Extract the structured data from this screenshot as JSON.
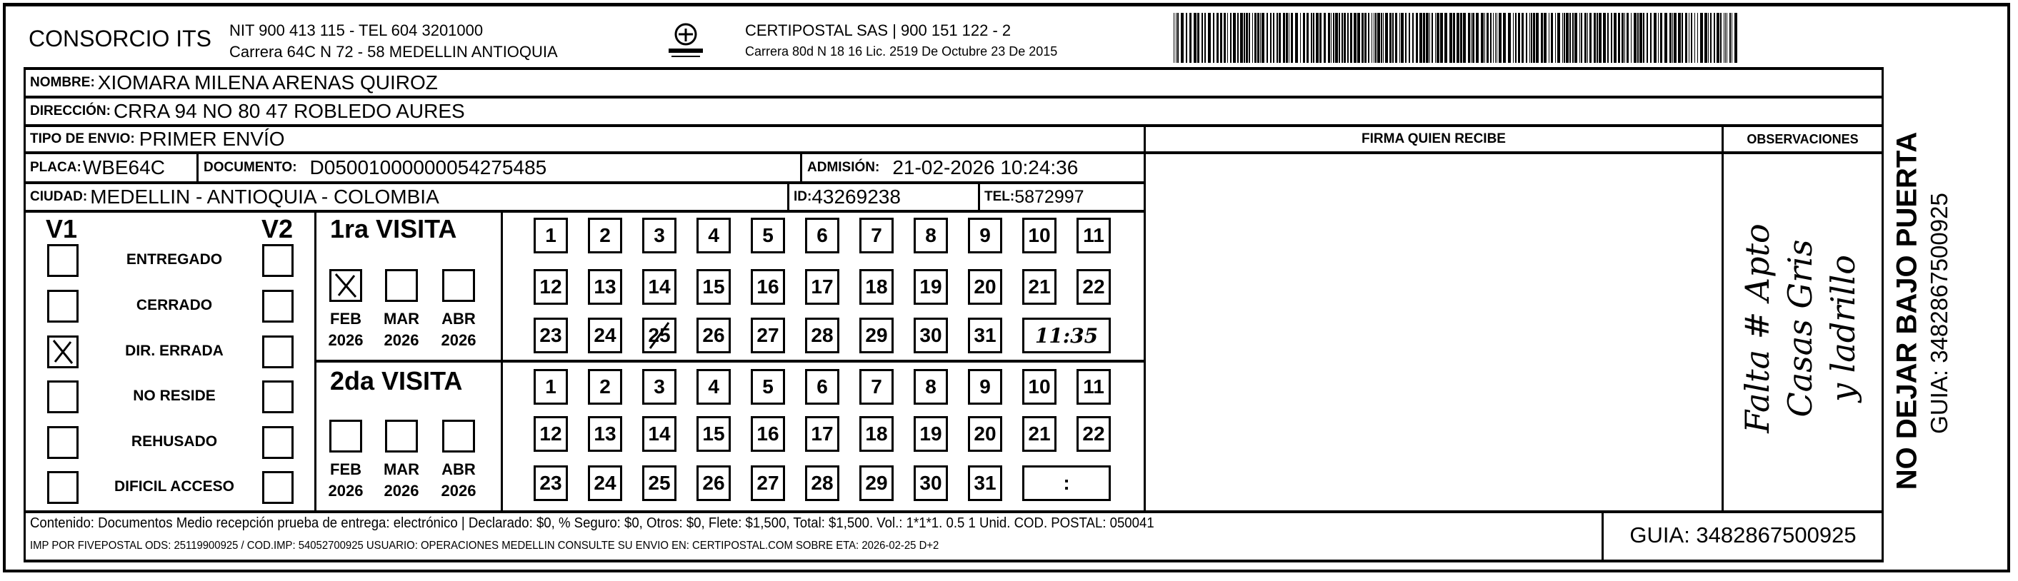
{
  "header": {
    "company": "CONSORCIO ITS",
    "company_line1": "NIT 900 413 115 - TEL 604 3201000",
    "company_line2": "Carrera 64C N 72 - 58 MEDELLIN ANTIOQUIA",
    "logo_text": "CERTIPOSTAL",
    "carrier_line1": "CERTIPOSTAL SAS | 900 151 122 - 2",
    "carrier_line2": "Carrera 80d N 18 16  Lic. 2519 De Octubre 23 De 2015",
    "barcode_icon": "barcode"
  },
  "fields": {
    "nombre_label": "NOMBRE:",
    "nombre": "XIOMARA MILENA ARENAS QUIROZ",
    "direccion_label": "DIRECCIÓN:",
    "direccion": "CRRA 94 NO 80 47 ROBLEDO AURES",
    "tipo_label": "TIPO DE ENVIO:",
    "tipo": "PRIMER ENVÍO",
    "placa_label": "PLACA:",
    "placa": "WBE64C",
    "documento_label": "DOCUMENTO:",
    "documento": "D05001000000054275485",
    "admision_label": "ADMISIÓN:",
    "admision": "21-02-2026 10:24:36",
    "ciudad_label": "CIUDAD:",
    "ciudad": "MEDELLIN - ANTIOQUIA - COLOMBIA",
    "id_label": "ID:",
    "id": "43269238",
    "tel_label": "TEL:",
    "tel": "5872997"
  },
  "firma_header": "FIRMA QUIEN RECIBE",
  "observaciones_header": "OBSERVACIONES",
  "observaciones_handwritten": [
    "Falta # Apto",
    "Casas Gris",
    "y ladrillo"
  ],
  "status": {
    "v1_label": "V1",
    "v2_label": "V2",
    "items": [
      {
        "label": "ENTREGADO",
        "v1": false,
        "v2": false
      },
      {
        "label": "CERRADO",
        "v1": false,
        "v2": false
      },
      {
        "label": "DIR. ERRADA",
        "v1": true,
        "v2": false
      },
      {
        "label": "NO RESIDE",
        "v1": false,
        "v2": false
      },
      {
        "label": "REHUSADO",
        "v1": false,
        "v2": false
      },
      {
        "label": "DIFICIL ACCESO",
        "v1": false,
        "v2": false
      }
    ]
  },
  "visits": [
    {
      "title": "1ra VISITA",
      "months": [
        {
          "month": "FEB",
          "year": "2026",
          "checked": true
        },
        {
          "month": "MAR",
          "year": "2026",
          "checked": false
        },
        {
          "month": "ABR",
          "year": "2026",
          "checked": false
        }
      ],
      "marked_day": 25,
      "time": "11:35"
    },
    {
      "title": "2da VISITA",
      "months": [
        {
          "month": "FEB",
          "year": "2026",
          "checked": false
        },
        {
          "month": "MAR",
          "year": "2026",
          "checked": false
        },
        {
          "month": "ABR",
          "year": "2026",
          "checked": false
        }
      ],
      "marked_day": null,
      "time": ":"
    }
  ],
  "side": {
    "warning": "NO DEJAR BAJO PUERTA",
    "guia": "GUIA: 3482867500925"
  },
  "footer": {
    "line1": "Contenido: Documentos Medio recepción prueba de entrega: electrónico | Declarado: $0, % Seguro: $0, Otros: $0, Flete: $1,500, Total: $1,500. Vol.: 1*1*1. 0.5  1 Unid. COD. POSTAL: 050041",
    "line2": "IMP POR FIVEPOSTAL ODS: 25119900925 / COD.IMP: 54052700925 USUARIO: OPERACIONES MEDELLIN CONSULTE SU ENVIO EN: CERTIPOSTAL.COM SOBRE ETA: 2026-02-25 D+2",
    "guia": "GUIA: 3482867500925"
  }
}
